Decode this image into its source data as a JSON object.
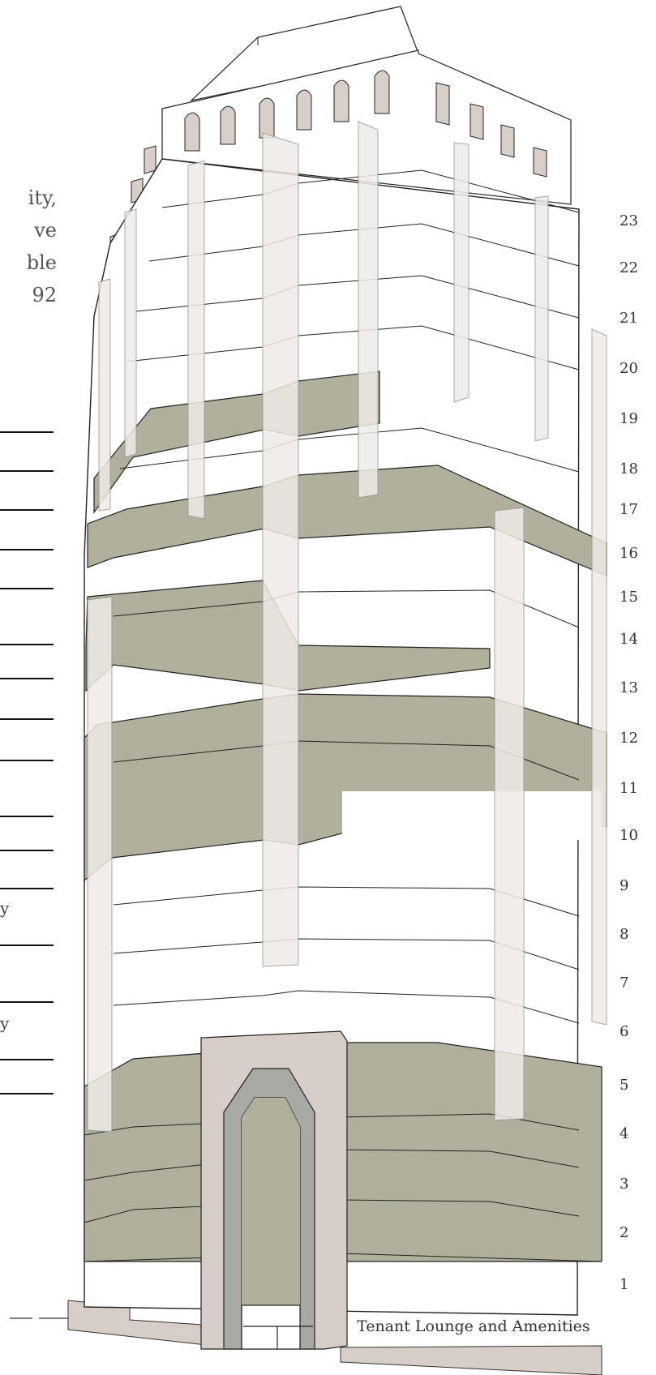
{
  "intro_fragments": [
    "ity,",
    "ve",
    "ble",
    "92"
  ],
  "leader_line_tails": [
    "y",
    "y"
  ],
  "floors": [
    "23",
    "22",
    "21",
    "20",
    "19",
    "18",
    "17",
    "16",
    "15",
    "14",
    "13",
    "12",
    "11",
    "10",
    "9",
    "8",
    "7",
    "6",
    "5",
    "4",
    "3",
    "2",
    "1"
  ],
  "amenity_label": "Tenant Lounge and Amenities",
  "colors": {
    "highlight_floor": "#b0b09c",
    "pilaster": "#efebe8",
    "stone": "#d8cec8",
    "arch_inner": "#a8a8a4",
    "roof_fin": "#d8d0c8",
    "line": "#222222"
  }
}
